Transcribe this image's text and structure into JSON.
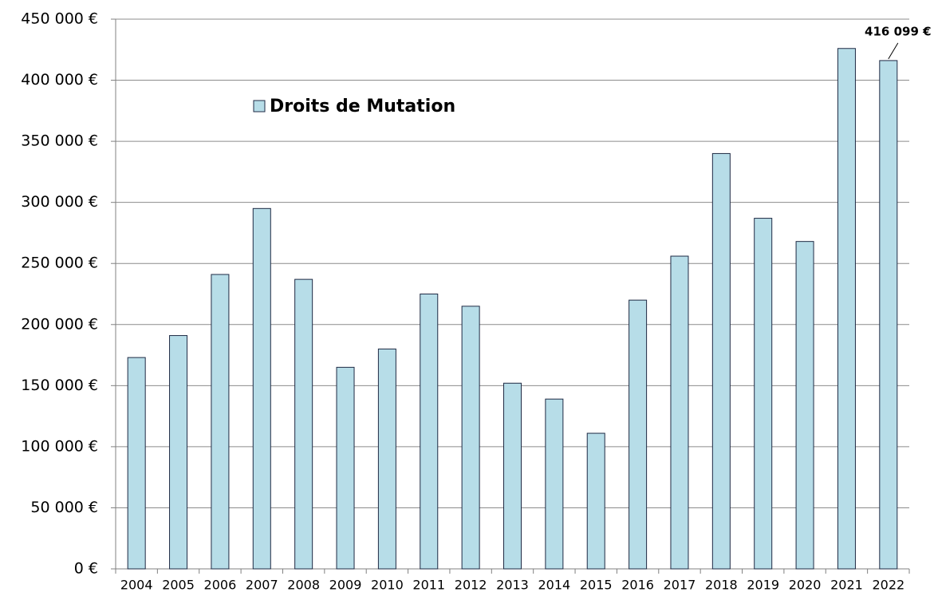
{
  "chart_data": {
    "type": "bar",
    "categories": [
      "2004",
      "2005",
      "2006",
      "2007",
      "2008",
      "2009",
      "2010",
      "2011",
      "2012",
      "2013",
      "2014",
      "2015",
      "2016",
      "2017",
      "2018",
      "2019",
      "2020",
      "2021",
      "2022"
    ],
    "series": [
      {
        "name": "Droits de Mutation",
        "color": "#b7dde8",
        "values": [
          173000,
          191000,
          241000,
          295000,
          237000,
          165000,
          180000,
          225000,
          215000,
          152000,
          139000,
          111000,
          220000,
          256000,
          340000,
          287000,
          268000,
          426000,
          416099
        ],
        "value_labels": [
          null,
          null,
          null,
          null,
          null,
          null,
          null,
          null,
          null,
          null,
          null,
          null,
          null,
          null,
          null,
          null,
          null,
          null,
          "416 099 €"
        ]
      }
    ],
    "ylim": [
      0,
      450000
    ],
    "yticks": [
      {
        "value": 0,
        "label": "0 €"
      },
      {
        "value": 50000,
        "label": "50 000 €"
      },
      {
        "value": 100000,
        "label": "100 000 €"
      },
      {
        "value": 150000,
        "label": "150 000 €"
      },
      {
        "value": 200000,
        "label": "200 000 €"
      },
      {
        "value": 250000,
        "label": "250 000 €"
      },
      {
        "value": 300000,
        "label": "300 000 €"
      },
      {
        "value": 350000,
        "label": "350 000 €"
      },
      {
        "value": 400000,
        "label": "400 000 €"
      },
      {
        "value": 450000,
        "label": "450 000 €"
      }
    ],
    "grid": true
  }
}
